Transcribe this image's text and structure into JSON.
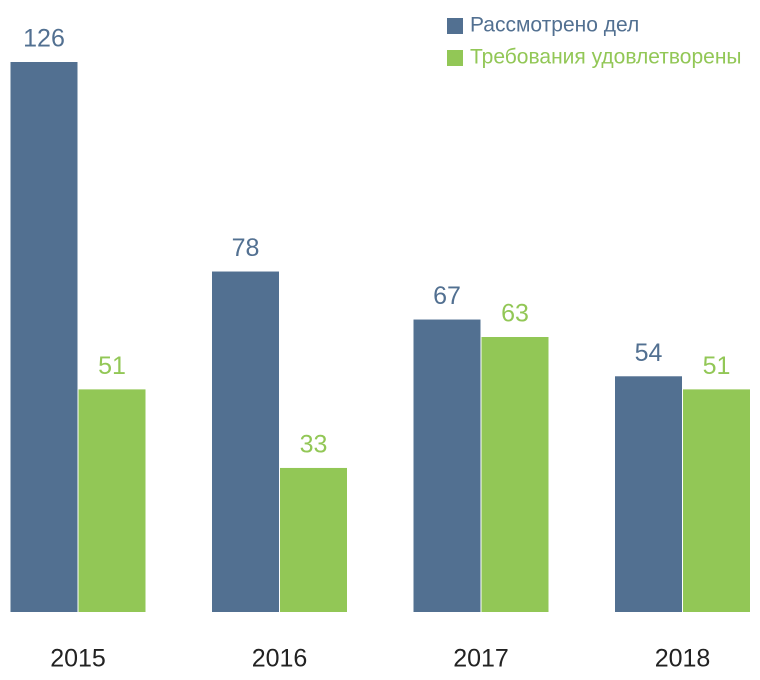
{
  "chart_data": {
    "type": "bar",
    "categories": [
      "2015",
      "2016",
      "2017",
      "2018"
    ],
    "series": [
      {
        "name": "Рассмотрено дел",
        "color": "#527091",
        "values": [
          126,
          78,
          67,
          54
        ]
      },
      {
        "name": "Требования удовлетворены",
        "color": "#92c756",
        "values": [
          51,
          33,
          63,
          51
        ]
      }
    ],
    "legend": "top-right"
  }
}
